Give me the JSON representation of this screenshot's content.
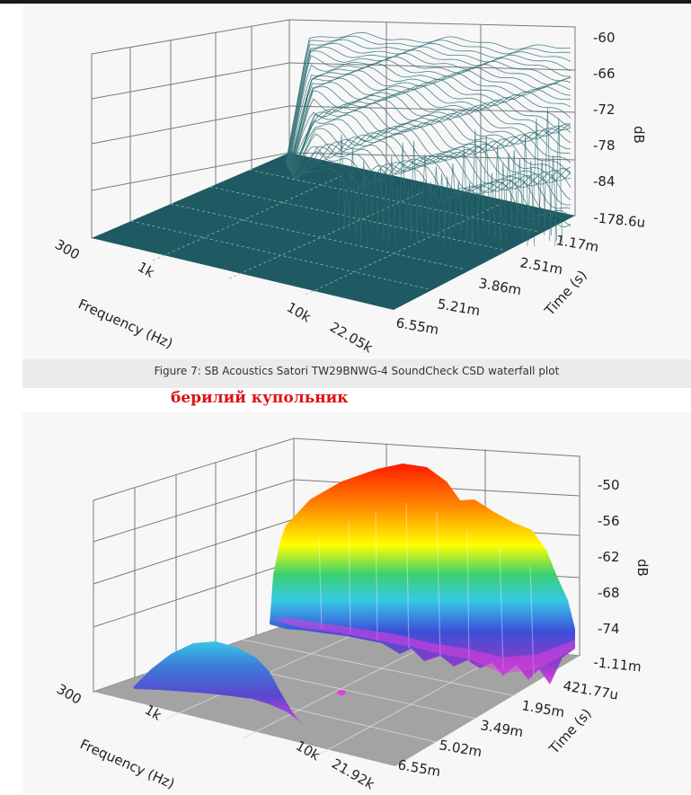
{
  "caption": "Figure 7: SB Acoustics Satori TW29BNWG-4 SoundCheck CSD waterfall plot",
  "annotation": "берилий купольник",
  "chart_data": [
    {
      "type": "area",
      "subtype": "csd-waterfall-wireframe",
      "title": "",
      "xlabel": "Frequency (Hz)",
      "ylabel": "Time (s)",
      "zlabel": "dB",
      "x_ticks": [
        "300",
        "1k",
        "10k",
        "22.05k"
      ],
      "time_ticks": [
        "1.17m",
        "2.51m",
        "3.86m",
        "5.21m",
        "6.55m"
      ],
      "db_ticks": [
        "-60",
        "-66",
        "-72",
        "-78",
        "-84",
        "-178.6u"
      ],
      "colors": {
        "surface": "#1f5a63",
        "lines": "#2f6d72"
      }
    },
    {
      "type": "area",
      "subtype": "csd-waterfall-surface",
      "title": "",
      "xlabel": "Frequency (Hz)",
      "ylabel": "Time (s)",
      "zlabel": "dB",
      "x_ticks": [
        "300",
        "1k",
        "10k",
        "21.92k"
      ],
      "time_ticks": [
        "421.77u",
        "1.95m",
        "3.49m",
        "5.02m",
        "6.55m"
      ],
      "db_ticks": [
        "-50",
        "-56",
        "-62",
        "-68",
        "-74",
        "-1.11m"
      ],
      "colors": {
        "floor": "#a0a0a0",
        "colormap": [
          "#ff1a00",
          "#ff8c00",
          "#ffff00",
          "#3ad070",
          "#37c8e6",
          "#3d4fd8",
          "#8a3cc8",
          "#e040e0"
        ]
      }
    }
  ]
}
